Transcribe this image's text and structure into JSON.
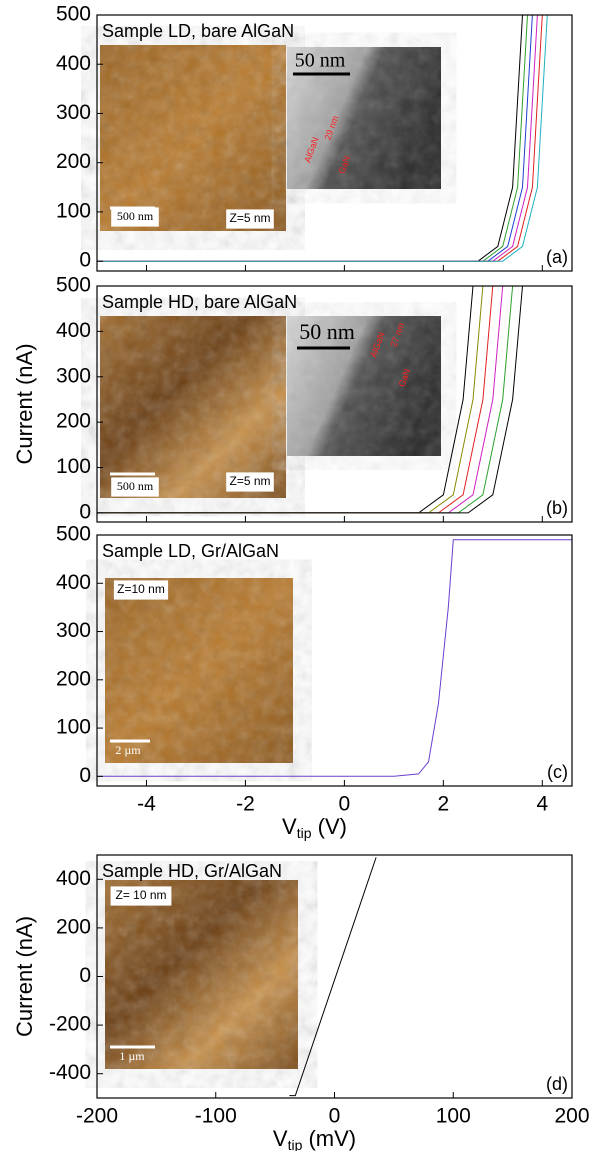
{
  "chart_data": [
    {
      "type": "line",
      "title": "Sample LD, bare AlGaN",
      "panel_label": "(a)",
      "xlim": [
        -5,
        4.6
      ],
      "xticks": [
        -4,
        -2,
        0,
        2,
        4
      ],
      "xtick_labels": false,
      "ylim": [
        -20,
        500
      ],
      "yticks": [
        0,
        100,
        200,
        300,
        400,
        500
      ],
      "inset_labels": [
        "500 nm",
        "Z=5 nm",
        "50 nm",
        "AlGaN",
        "29 nm",
        "GaN"
      ],
      "series": [
        {
          "color": "#000000",
          "x": [
            -5,
            2.7,
            3.1,
            3.4,
            3.6,
            4.6
          ],
          "values": [
            0,
            0,
            30,
            150,
            500,
            500
          ]
        },
        {
          "color": "#2ca02c",
          "x": [
            -5,
            2.8,
            3.2,
            3.5,
            3.7,
            4.6
          ],
          "values": [
            0,
            0,
            30,
            150,
            500,
            500
          ]
        },
        {
          "color": "#1f3fd0",
          "x": [
            -5,
            2.9,
            3.3,
            3.6,
            3.8,
            4.6
          ],
          "values": [
            0,
            0,
            30,
            150,
            500,
            500
          ]
        },
        {
          "color": "#d020c0",
          "x": [
            -5,
            3.0,
            3.4,
            3.7,
            3.9,
            4.6
          ],
          "values": [
            0,
            0,
            30,
            150,
            500,
            500
          ]
        },
        {
          "color": "#e02020",
          "x": [
            -5,
            3.1,
            3.5,
            3.8,
            4.0,
            4.6
          ],
          "values": [
            0,
            0,
            30,
            150,
            500,
            500
          ]
        },
        {
          "color": "#20b0c0",
          "x": [
            -5,
            3.2,
            3.6,
            3.9,
            4.1,
            4.6
          ],
          "values": [
            0,
            0,
            30,
            150,
            500,
            500
          ]
        }
      ]
    },
    {
      "type": "line",
      "title": "Sample HD, bare AlGaN",
      "panel_label": "(b)",
      "ylabel": "Current (nA)",
      "xlim": [
        -5,
        4.6
      ],
      "xticks": [
        -4,
        -2,
        0,
        2,
        4
      ],
      "xtick_labels": false,
      "ylim": [
        -20,
        500
      ],
      "yticks": [
        0,
        100,
        200,
        300,
        400,
        500
      ],
      "inset_labels": [
        "500 nm",
        "Z=5 nm",
        "50 nm",
        "AlGaN",
        "27 nm",
        "GaN"
      ],
      "series": [
        {
          "color": "#000000",
          "x": [
            -5,
            1.5,
            2.0,
            2.4,
            2.6,
            4.6
          ],
          "values": [
            0,
            0,
            40,
            250,
            500,
            500
          ]
        },
        {
          "color": "#8a8a00",
          "x": [
            -5,
            1.7,
            2.2,
            2.6,
            2.8,
            4.6
          ],
          "values": [
            0,
            0,
            40,
            250,
            500,
            500
          ]
        },
        {
          "color": "#e02020",
          "x": [
            -5,
            1.9,
            2.4,
            2.8,
            3.0,
            4.6
          ],
          "values": [
            0,
            0,
            40,
            250,
            500,
            500
          ]
        },
        {
          "color": "#d020c0",
          "x": [
            -5,
            2.1,
            2.6,
            3.0,
            3.2,
            4.6
          ],
          "values": [
            0,
            0,
            40,
            250,
            500,
            500
          ]
        },
        {
          "color": "#2ca02c",
          "x": [
            -5,
            2.3,
            2.8,
            3.2,
            3.4,
            4.6
          ],
          "values": [
            0,
            0,
            40,
            250,
            500,
            500
          ]
        },
        {
          "color": "#000000",
          "x": [
            -5,
            2.5,
            3.0,
            3.4,
            3.6,
            4.6
          ],
          "values": [
            0,
            0,
            40,
            250,
            500,
            500
          ]
        }
      ]
    },
    {
      "type": "line",
      "title": "Sample LD, Gr/AlGaN",
      "panel_label": "(c)",
      "xlabel": "V",
      "xlabel_sub": "tip",
      "xlabel_unit": " (V)",
      "xlim": [
        -5,
        4.6
      ],
      "xticks": [
        -4,
        -2,
        0,
        2,
        4
      ],
      "xtick_labels": true,
      "ylim": [
        -20,
        500
      ],
      "yticks": [
        0,
        100,
        200,
        300,
        400,
        500
      ],
      "inset_labels": [
        "Z=10 nm",
        "2 µm"
      ],
      "series": [
        {
          "color": "#6a3fd0",
          "x": [
            -5,
            1.0,
            1.5,
            1.7,
            1.9,
            2.1,
            2.2,
            4.6
          ],
          "values": [
            0,
            0,
            5,
            30,
            150,
            350,
            490,
            490
          ]
        }
      ]
    },
    {
      "type": "line",
      "title": "Sample HD, Gr/AlGaN",
      "panel_label": "(d)",
      "ylabel": "Current (nA)",
      "xlabel": "V",
      "xlabel_sub": "tip",
      "xlabel_unit": " (mV)",
      "xlim": [
        -200,
        200
      ],
      "xticks": [
        -200,
        -100,
        0,
        100,
        200
      ],
      "xtick_labels": true,
      "ylim": [
        -500,
        500
      ],
      "yticks": [
        -400,
        -200,
        0,
        200,
        400
      ],
      "inset_labels": [
        "Z= 10 nm",
        "1 µm"
      ],
      "series": [
        {
          "color": "#000000",
          "x": [
            -38,
            -33,
            35
          ],
          "values": [
            -490,
            -490,
            490
          ]
        }
      ]
    }
  ]
}
